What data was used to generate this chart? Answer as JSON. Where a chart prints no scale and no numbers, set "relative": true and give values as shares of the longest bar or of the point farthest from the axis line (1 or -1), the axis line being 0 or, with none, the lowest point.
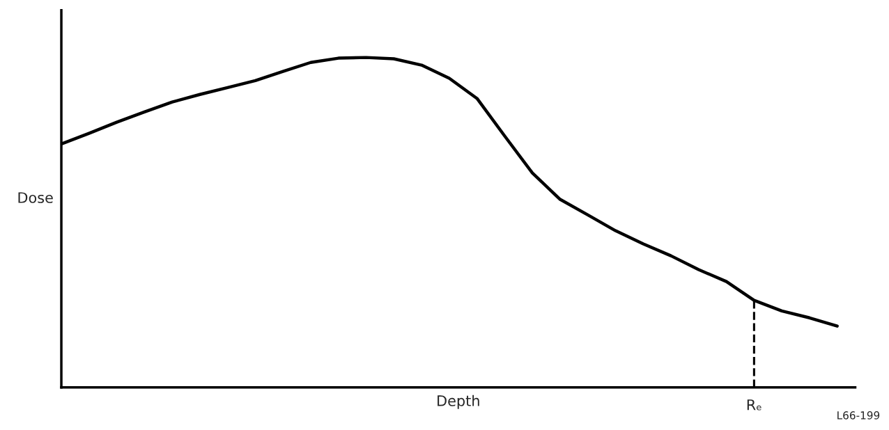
{
  "chart_data": {
    "type": "line",
    "relative": true,
    "xlabel": "Depth",
    "ylabel": "Dose",
    "categories": [
      null,
      null,
      null,
      null,
      null,
      null,
      null,
      null,
      null,
      null,
      null,
      null,
      null,
      null,
      null,
      null,
      null,
      null,
      null,
      null,
      null,
      null,
      null,
      null,
      null,
      null,
      null,
      null,
      null
    ],
    "series": [
      {
        "color": "#000000",
        "values": [
          0.738,
          0.77,
          0.804,
          0.835,
          0.865,
          0.888,
          0.909,
          0.93,
          0.958,
          0.985,
          0.998,
          1,
          0.996,
          0.977,
          0.937,
          0.876,
          0.762,
          0.65,
          0.57,
          0.523,
          0.475,
          0.435,
          0.399,
          0.357,
          0.321,
          0.264,
          0.232,
          0.211,
          0.186
        ]
      }
    ],
    "marker": "none",
    "line_style": "solid",
    "annotations": [
      {
        "text": "Rₑ",
        "y": 0.264
      },
      "L66-199"
    ]
  }
}
